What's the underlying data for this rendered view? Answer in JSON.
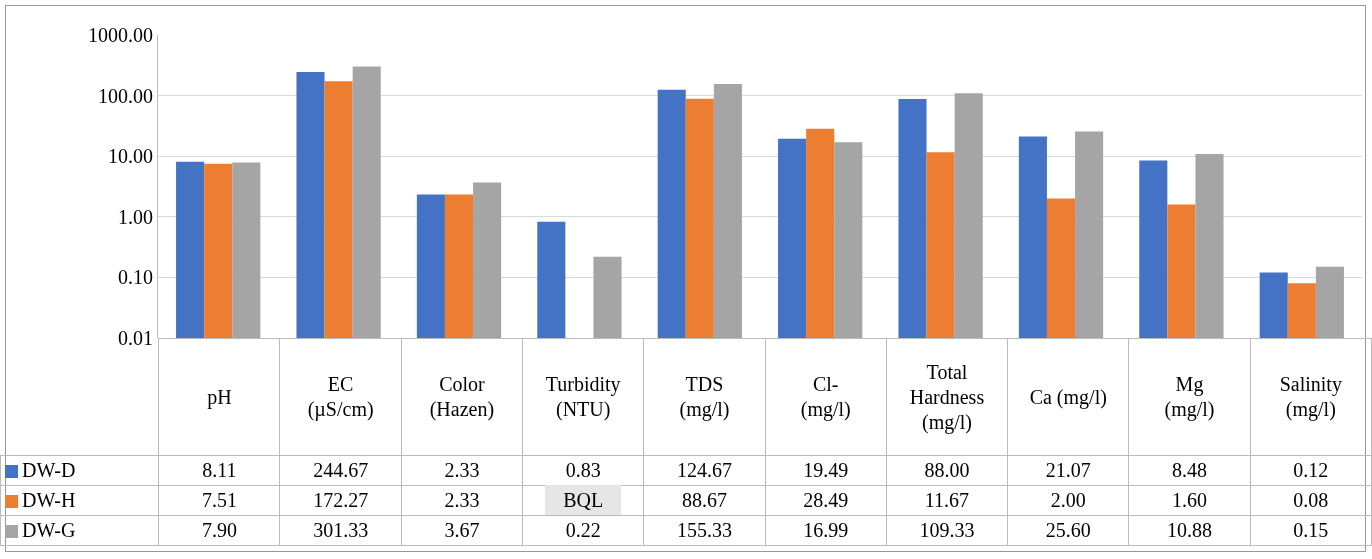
{
  "chart_data": {
    "type": "bar",
    "log": "y",
    "grid": "y",
    "legend": "bottom left",
    "categories": [
      "pH",
      "EC\n(µS/cm)",
      "Color\n(Hazen)",
      "Turbidity\n(NTU)",
      "TDS\n(mg/l)",
      "Cl-\n(mg/l)",
      "Total\nHardness\n(mg/l)",
      "Ca (mg/l)",
      "Mg\n(mg/l)",
      "Salinity\n(mg/l)"
    ],
    "ylim": [
      0.01,
      1000
    ],
    "yticks": [
      {
        "value": 0.01,
        "label": "0.01"
      },
      {
        "value": 0.1,
        "label": "0.10"
      },
      {
        "value": 1,
        "label": "1.00"
      },
      {
        "value": 10,
        "label": "10.00"
      },
      {
        "value": 100,
        "label": "100.00"
      },
      {
        "value": 1000,
        "label": "1000.00"
      }
    ],
    "series": [
      {
        "name": "DW-D",
        "color": "#4472c4",
        "values": [
          8.11,
          244.67,
          2.33,
          0.83,
          124.67,
          19.49,
          88,
          21.07,
          8.48,
          0.12
        ],
        "value_labels": [
          "8.11",
          "244.67",
          "2.33",
          "0.83",
          "124.67",
          "19.49",
          "88.00",
          "21.07",
          "8.48",
          "0.12"
        ]
      },
      {
        "name": "DW-H",
        "color": "#ed7d31",
        "values": [
          7.51,
          172.27,
          2.33,
          null,
          88.67,
          28.49,
          11.67,
          2,
          1.6,
          0.08
        ],
        "value_labels": [
          "7.51",
          "172.27",
          "2.33",
          "BQL",
          "88.67",
          "28.49",
          "11.67",
          "2.00",
          "1.60",
          "0.08"
        ]
      },
      {
        "name": "DW-G",
        "color": "#a5a5a5",
        "values": [
          7.9,
          301.33,
          3.67,
          0.22,
          155.33,
          16.99,
          109.33,
          25.6,
          10.88,
          0.15
        ],
        "value_labels": [
          "7.90",
          "301.33",
          "3.67",
          "0.22",
          "155.33",
          "16.99",
          "109.33",
          "25.60",
          "10.88",
          "0.15"
        ]
      }
    ]
  }
}
